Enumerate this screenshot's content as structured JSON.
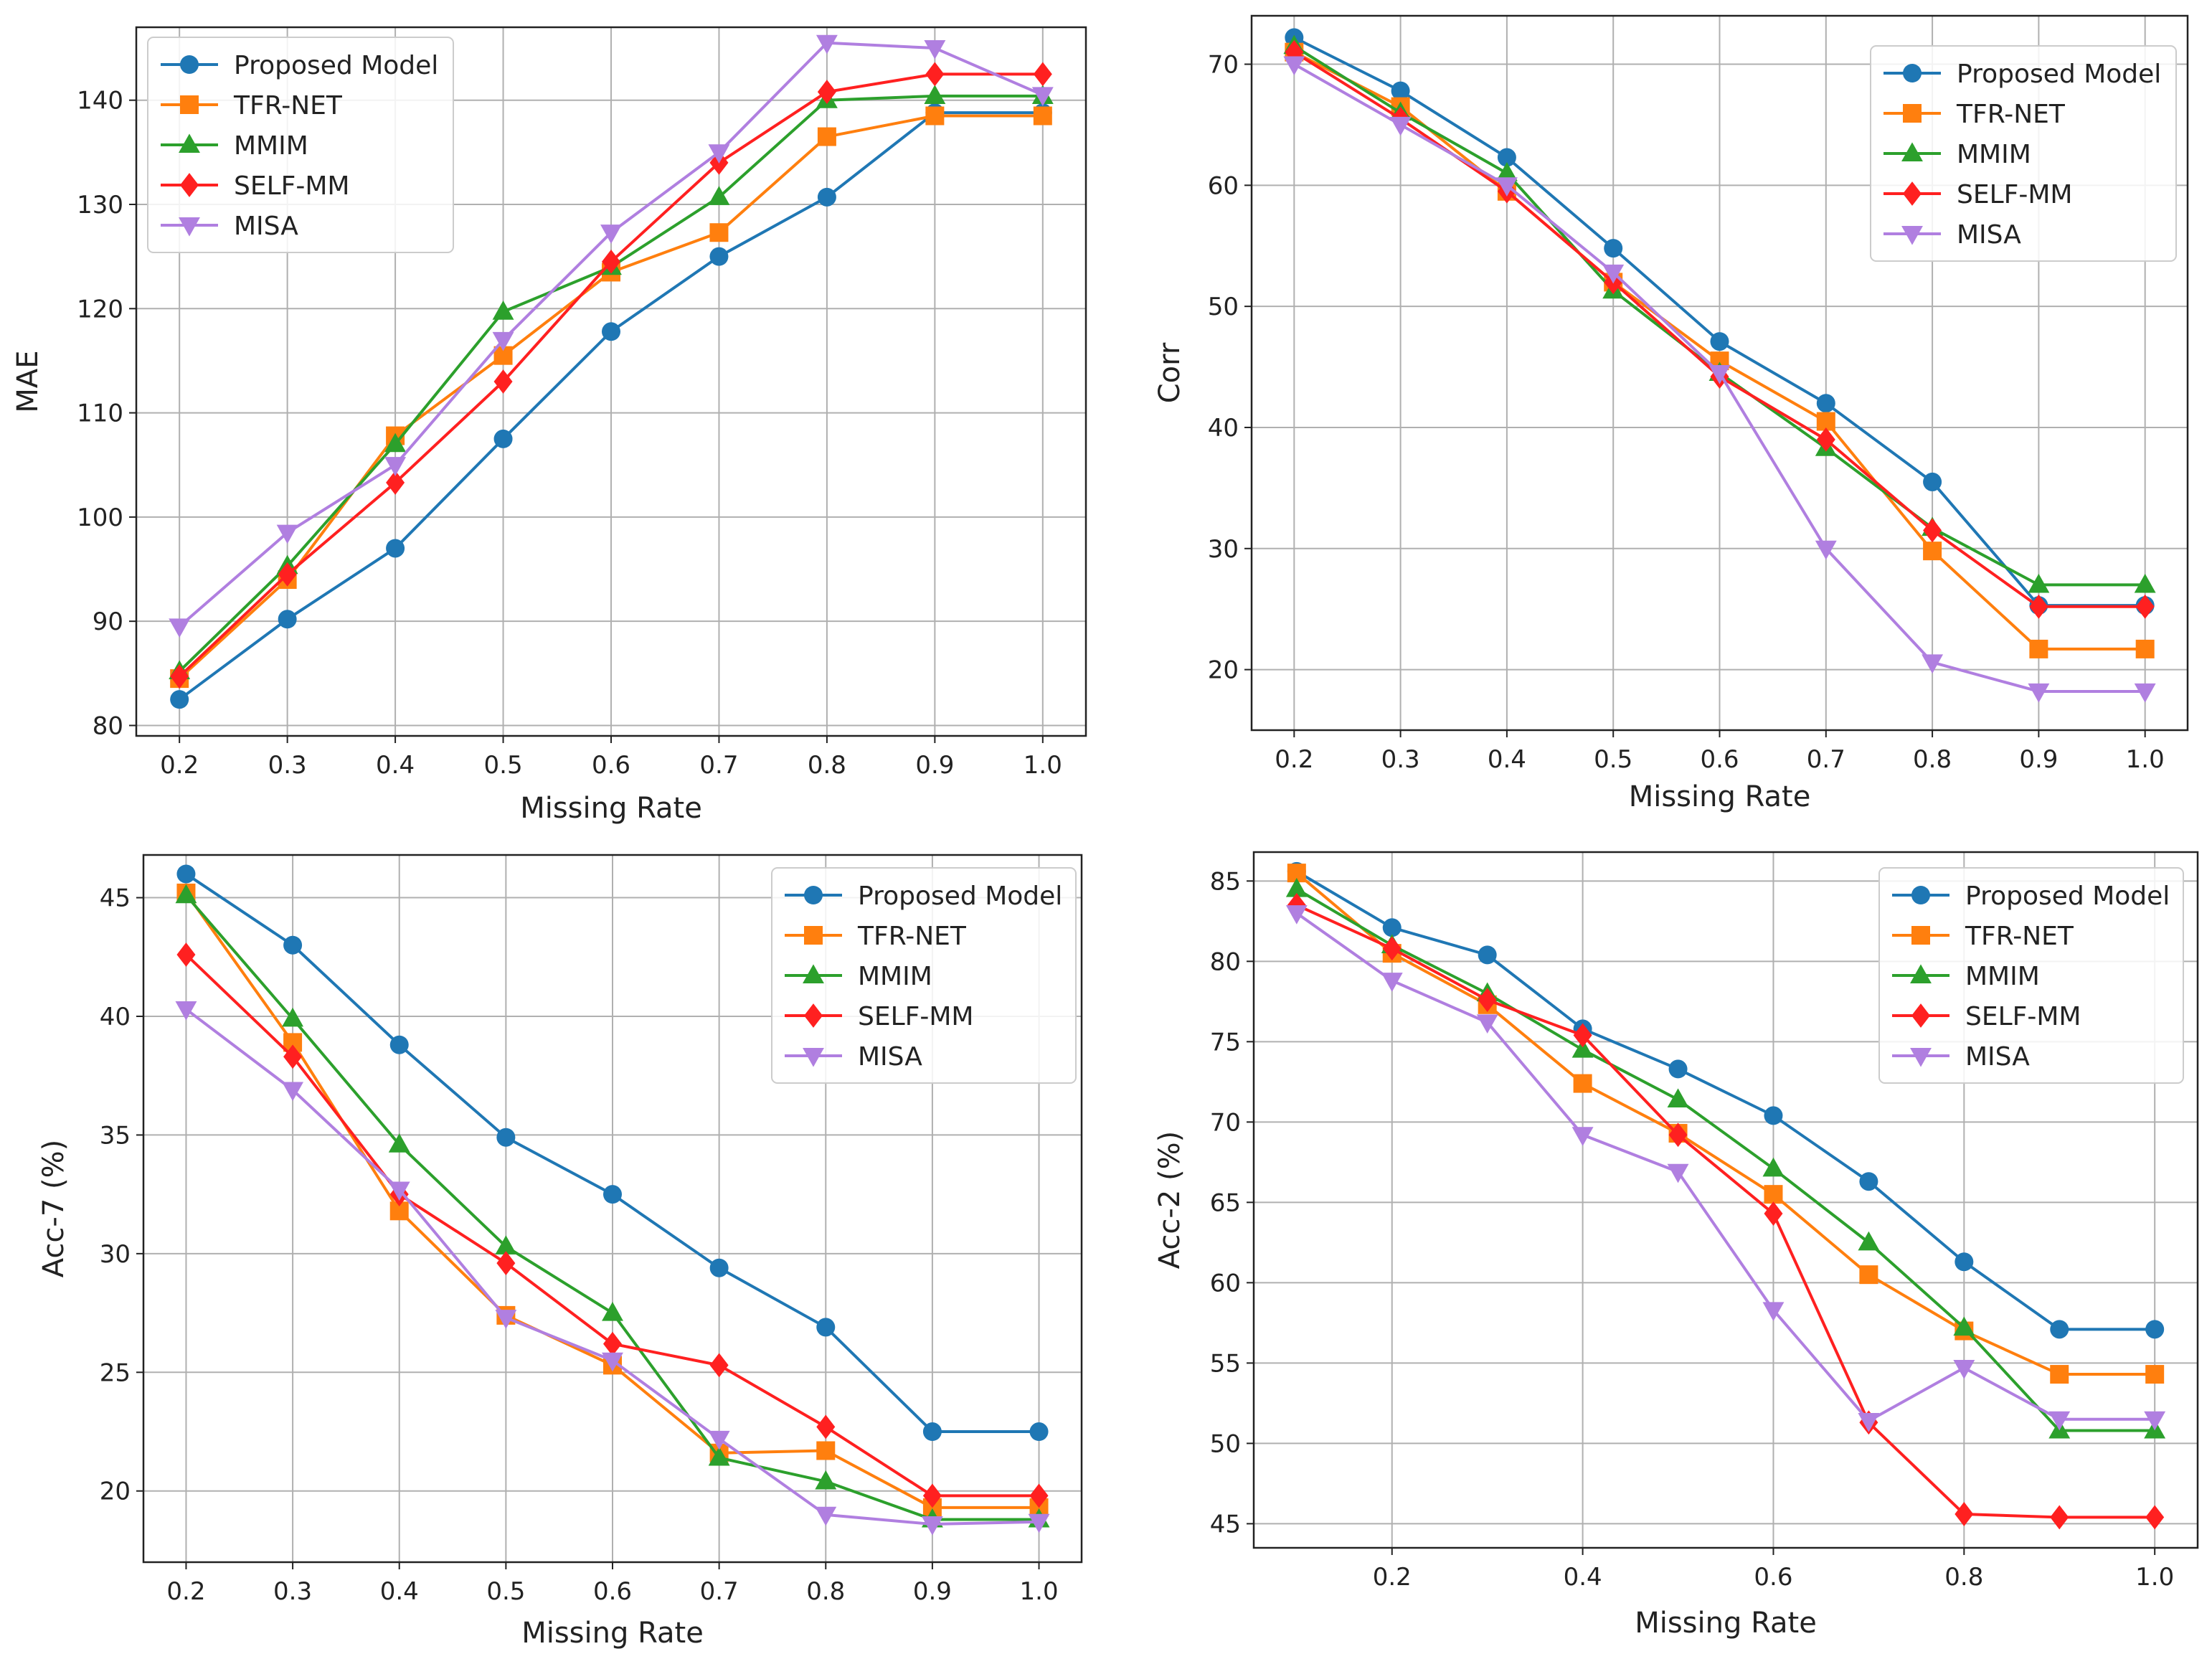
{
  "series_colors": {
    "Proposed Model": "#1f77b4",
    "TFR-NET": "#ff7f0e",
    "MMIM": "#2ca02c",
    "SELF-MM": "#ff2020",
    "MISA": "#b07fe0"
  },
  "series_markers": {
    "Proposed Model": "circle",
    "TFR-NET": "square",
    "MMIM": "triangle-up",
    "SELF-MM": "diamond",
    "MISA": "triangle-down"
  },
  "chart_data": [
    {
      "type": "line",
      "title": "",
      "xlabel": "Missing Rate",
      "ylabel": "MAE",
      "xlim": [
        0.16,
        1.04
      ],
      "ylim": [
        79,
        147
      ],
      "xticks": [
        0.2,
        0.3,
        0.4,
        0.5,
        0.6,
        0.7,
        0.8,
        0.9,
        1.0
      ],
      "xtick_labels": [
        "0.2",
        "0.3",
        "0.4",
        "0.5",
        "0.6",
        "0.7",
        "0.8",
        "0.9",
        "1.0"
      ],
      "yticks": [
        80,
        90,
        100,
        110,
        120,
        130,
        140
      ],
      "ytick_labels": [
        "80",
        "90",
        "100",
        "110",
        "120",
        "130",
        "140"
      ],
      "grid": true,
      "legend": "top-left",
      "x": [
        0.2,
        0.3,
        0.4,
        0.5,
        0.6,
        0.7,
        0.8,
        0.9,
        1.0
      ],
      "series": [
        {
          "name": "Proposed Model",
          "values": [
            82.5,
            90.2,
            97.0,
            107.5,
            117.8,
            125.0,
            130.7,
            138.8,
            138.8
          ]
        },
        {
          "name": "TFR-NET",
          "values": [
            84.5,
            94.0,
            107.8,
            115.5,
            123.5,
            127.3,
            136.5,
            138.5,
            138.5
          ]
        },
        {
          "name": "MMIM",
          "values": [
            85.2,
            95.3,
            107.0,
            119.7,
            124.0,
            130.7,
            140.0,
            140.4,
            140.4
          ]
        },
        {
          "name": "SELF-MM",
          "values": [
            84.7,
            94.5,
            103.3,
            113.0,
            124.5,
            134.0,
            140.8,
            142.5,
            142.5
          ]
        },
        {
          "name": "MISA",
          "values": [
            89.5,
            98.5,
            105.0,
            117.0,
            127.3,
            135.0,
            145.5,
            145.0,
            140.5
          ]
        }
      ]
    },
    {
      "type": "line",
      "title": "",
      "xlabel": "Missing Rate",
      "ylabel": "Corr",
      "xlim": [
        0.16,
        1.04
      ],
      "ylim": [
        15,
        74
      ],
      "xticks": [
        0.2,
        0.3,
        0.4,
        0.5,
        0.6,
        0.7,
        0.8,
        0.9,
        1.0
      ],
      "xtick_labels": [
        "0.2",
        "0.3",
        "0.4",
        "0.5",
        "0.6",
        "0.7",
        "0.8",
        "0.9",
        "1.0"
      ],
      "yticks": [
        20,
        30,
        40,
        50,
        60,
        70
      ],
      "ytick_labels": [
        "20",
        "30",
        "40",
        "50",
        "60",
        "70"
      ],
      "grid": true,
      "legend": "top-right",
      "x": [
        0.2,
        0.3,
        0.4,
        0.5,
        0.6,
        0.7,
        0.8,
        0.9,
        1.0
      ],
      "series": [
        {
          "name": "Proposed Model",
          "values": [
            72.2,
            67.8,
            62.3,
            54.8,
            47.1,
            42.0,
            35.5,
            25.3,
            25.3
          ]
        },
        {
          "name": "TFR-NET",
          "values": [
            71.0,
            66.5,
            59.5,
            52.0,
            45.5,
            40.5,
            29.8,
            21.7,
            21.7
          ]
        },
        {
          "name": "MMIM",
          "values": [
            71.5,
            66.0,
            61.0,
            51.3,
            44.5,
            38.3,
            31.7,
            27.0,
            27.0
          ]
        },
        {
          "name": "SELF-MM",
          "values": [
            71.0,
            65.5,
            59.5,
            52.0,
            44.2,
            39.0,
            31.5,
            25.2,
            25.2
          ]
        },
        {
          "name": "MISA",
          "values": [
            70.0,
            65.0,
            60.0,
            52.8,
            44.5,
            30.0,
            20.6,
            18.2,
            18.2
          ]
        }
      ]
    },
    {
      "type": "line",
      "title": "",
      "xlabel": "Missing Rate",
      "ylabel": "Acc-7 (%)",
      "xlim": [
        0.16,
        1.04
      ],
      "ylim": [
        17.0,
        46.8
      ],
      "xticks": [
        0.2,
        0.3,
        0.4,
        0.5,
        0.6,
        0.7,
        0.8,
        0.9,
        1.0
      ],
      "xtick_labels": [
        "0.2",
        "0.3",
        "0.4",
        "0.5",
        "0.6",
        "0.7",
        "0.8",
        "0.9",
        "1.0"
      ],
      "yticks": [
        20,
        25,
        30,
        35,
        40,
        45
      ],
      "ytick_labels": [
        "20",
        "25",
        "30",
        "35",
        "40",
        "45"
      ],
      "grid": true,
      "legend": "top-right",
      "x": [
        0.2,
        0.3,
        0.4,
        0.5,
        0.6,
        0.7,
        0.8,
        0.9,
        1.0
      ],
      "series": [
        {
          "name": "Proposed Model",
          "values": [
            46.0,
            43.0,
            38.8,
            34.9,
            32.5,
            29.4,
            26.9,
            22.5,
            22.5
          ]
        },
        {
          "name": "TFR-NET",
          "values": [
            45.2,
            38.9,
            31.8,
            27.4,
            25.3,
            21.6,
            21.7,
            19.3,
            19.3
          ]
        },
        {
          "name": "MMIM",
          "values": [
            45.1,
            39.9,
            34.6,
            30.3,
            27.5,
            21.4,
            20.4,
            18.8,
            18.8
          ]
        },
        {
          "name": "SELF-MM",
          "values": [
            42.6,
            38.3,
            32.5,
            29.6,
            26.2,
            25.3,
            22.7,
            19.8,
            19.8
          ]
        },
        {
          "name": "MISA",
          "values": [
            40.3,
            36.9,
            32.7,
            27.3,
            25.5,
            22.2,
            19.0,
            18.6,
            18.7
          ]
        }
      ]
    },
    {
      "type": "line",
      "title": "",
      "xlabel": "Missing Rate",
      "ylabel": "Acc-2 (%)",
      "xlim": [
        0.055,
        1.045
      ],
      "ylim": [
        43.5,
        86.8
      ],
      "xticks": [
        0.2,
        0.4,
        0.6,
        0.8,
        1.0
      ],
      "xtick_labels": [
        "0.2",
        "0.4",
        "0.6",
        "0.8",
        "1.0"
      ],
      "yticks": [
        45,
        50,
        55,
        60,
        65,
        70,
        75,
        80,
        85
      ],
      "ytick_labels": [
        "45",
        "50",
        "55",
        "60",
        "65",
        "70",
        "75",
        "80",
        "85"
      ],
      "grid": true,
      "legend": "top-right",
      "x": [
        0.1,
        0.2,
        0.3,
        0.4,
        0.5,
        0.6,
        0.7,
        0.8,
        0.9,
        1.0
      ],
      "series": [
        {
          "name": "Proposed Model",
          "values": [
            85.6,
            82.1,
            80.4,
            75.8,
            73.3,
            70.4,
            66.3,
            61.3,
            57.1,
            57.1
          ]
        },
        {
          "name": "TFR-NET",
          "values": [
            85.5,
            80.5,
            77.3,
            72.4,
            69.3,
            65.5,
            60.5,
            57.0,
            54.3,
            54.3
          ]
        },
        {
          "name": "MMIM",
          "values": [
            84.5,
            81.0,
            78.0,
            74.5,
            71.4,
            67.1,
            62.5,
            57.2,
            50.8,
            50.8
          ]
        },
        {
          "name": "SELF-MM",
          "values": [
            83.5,
            80.8,
            77.6,
            75.4,
            69.2,
            64.3,
            51.3,
            45.6,
            45.4,
            45.4
          ]
        },
        {
          "name": "MISA",
          "values": [
            83.0,
            78.8,
            76.2,
            69.2,
            66.9,
            58.3,
            51.4,
            54.7,
            51.5,
            51.5
          ]
        }
      ]
    }
  ]
}
